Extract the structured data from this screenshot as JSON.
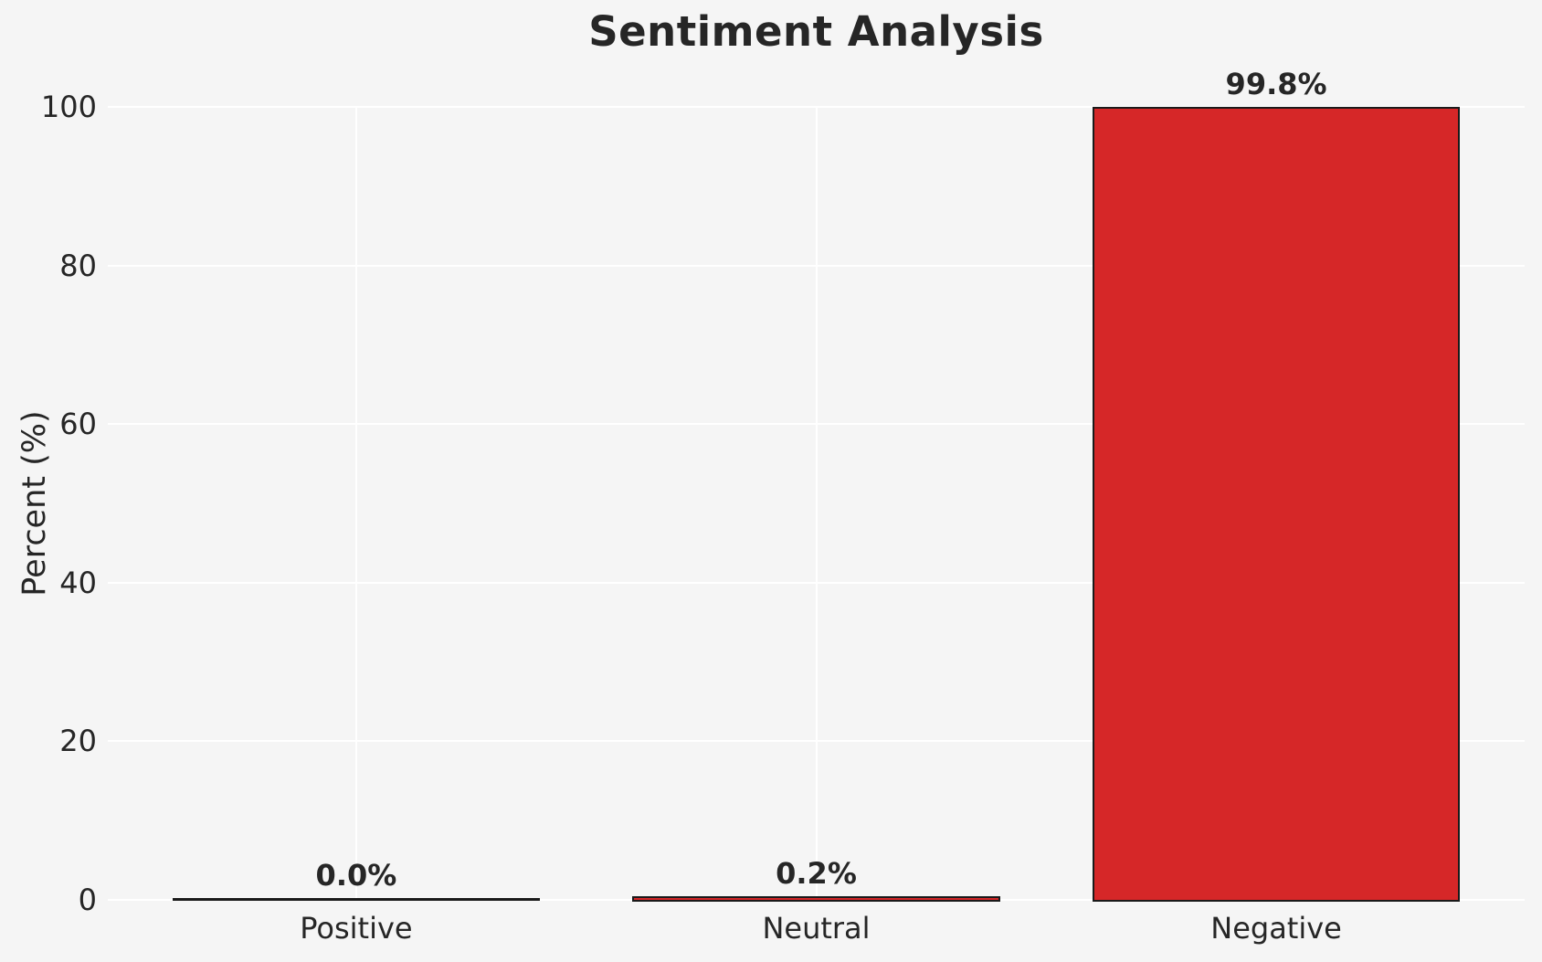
{
  "chart_data": {
    "type": "bar",
    "title": "Sentiment Analysis",
    "xlabel": "",
    "ylabel": "Percent (%)",
    "categories": [
      "Positive",
      "Neutral",
      "Negative"
    ],
    "values": [
      0.0,
      0.2,
      99.8
    ],
    "value_labels": [
      "0.0%",
      "0.2%",
      "99.8%"
    ],
    "yticks": [
      0,
      20,
      40,
      60,
      80,
      100
    ],
    "ylim": [
      0,
      100
    ],
    "grid": true,
    "legend": false,
    "colors": {
      "bar_fill": "#d62728",
      "bar_edge": "#1a1a1a",
      "background": "#f5f5f5",
      "gridline": "#ffffff",
      "text": "#262626"
    }
  }
}
